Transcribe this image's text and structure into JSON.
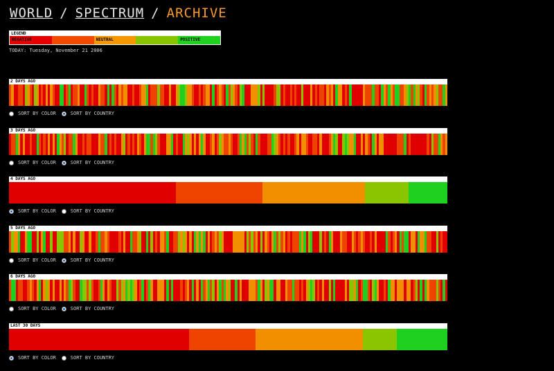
{
  "header": {
    "crumbs": [
      "WORLD",
      "SPECTRUM"
    ],
    "separator": "/",
    "current": "ARCHIVE"
  },
  "legend": {
    "title": "LEGEND",
    "items": [
      {
        "label": "NEGATIVE",
        "color": "#e40000"
      },
      {
        "label": "",
        "color": "#f24a00"
      },
      {
        "label": "NEUTRAL",
        "color": "#f59800"
      },
      {
        "label": "",
        "color": "#88c400"
      },
      {
        "label": "POSITIVE",
        "color": "#1fd21f"
      }
    ]
  },
  "today": "TODAY: Tuesday, November 21 2006",
  "radio_labels": {
    "color": "SORT BY COLOR",
    "country": "SORT BY COUNTRY"
  },
  "sections": [
    {
      "label": "2 DAYS AGO",
      "sort": "country"
    },
    {
      "label": "3 DAYS AGO",
      "sort": "country"
    },
    {
      "label": "4 DAYS AGO",
      "sort": "color"
    },
    {
      "label": "5 DAYS AGO",
      "sort": "country"
    },
    {
      "label": "6 DAYS AGO",
      "sort": "country"
    },
    {
      "label": "LAST 30 DAYS",
      "sort": "color"
    }
  ]
}
